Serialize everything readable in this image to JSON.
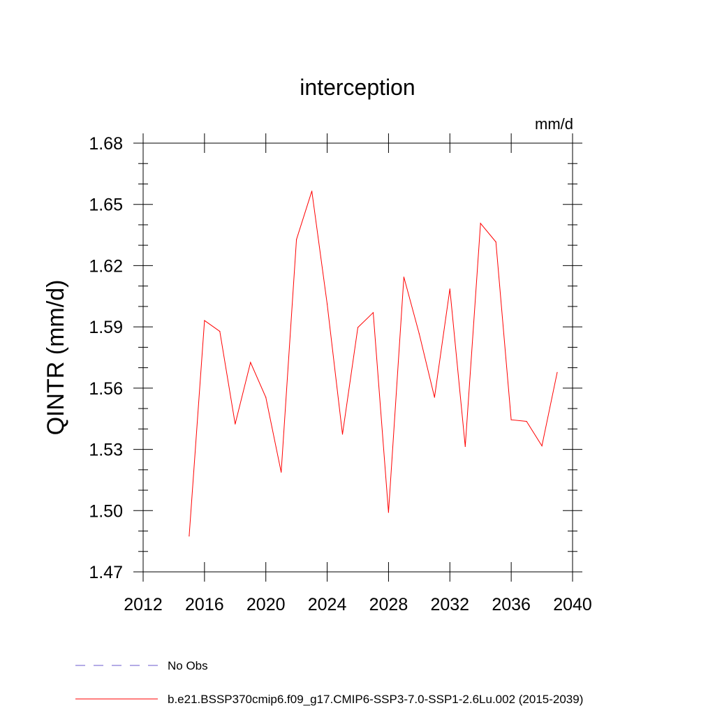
{
  "chart_data": {
    "type": "line",
    "title": "interception",
    "units": "mm/d",
    "ylabel": "QINTR  (mm/d)",
    "xlabel": "",
    "xlim": [
      2012,
      2040
    ],
    "ylim": [
      1.47,
      1.68
    ],
    "xticks": [
      "2012",
      "2016",
      "2020",
      "2024",
      "2028",
      "2032",
      "2036",
      "2040"
    ],
    "yticks": [
      "1.47",
      "1.50",
      "1.53",
      "1.56",
      "1.59",
      "1.62",
      "1.65",
      "1.68"
    ],
    "grid": false,
    "legend_position": "bottom",
    "series": [
      {
        "name": "b.e21.BSSP370cmip6.f09_g17.CMIP6-SSP3-7.0-SSP1-2.6Lu.002 (2015-2039)",
        "color": "#ff0000",
        "dash": "solid",
        "x": [
          2015,
          2016,
          2017,
          2018,
          2019,
          2020,
          2021,
          2022,
          2023,
          2024,
          2025,
          2026,
          2027,
          2028,
          2029,
          2030,
          2031,
          2032,
          2033,
          2034,
          2035,
          2036,
          2037,
          2038,
          2039
        ],
        "y": [
          1.4875,
          1.5931,
          1.5878,
          1.5424,
          1.5726,
          1.5555,
          1.5188,
          1.6328,
          1.6565,
          1.6011,
          1.5374,
          1.5897,
          1.597,
          1.4991,
          1.6144,
          1.5866,
          1.5555,
          1.6086,
          1.5314,
          1.6407,
          1.6316,
          1.5445,
          1.5437,
          1.5317,
          1.5677
        ]
      },
      {
        "name": "No Obs",
        "color": "#6a5acd",
        "dash": "dashed",
        "x": [],
        "y": []
      }
    ]
  }
}
